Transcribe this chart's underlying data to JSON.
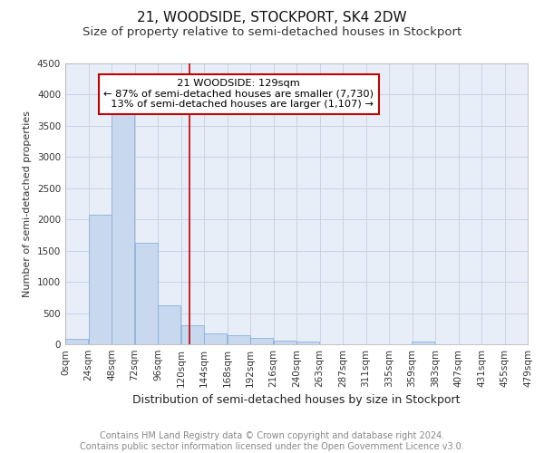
{
  "title": "21, WOODSIDE, STOCKPORT, SK4 2DW",
  "subtitle": "Size of property relative to semi-detached houses in Stockport",
  "xlabel": "Distribution of semi-detached houses by size in Stockport",
  "ylabel": "Number of semi-detached properties",
  "footnote": "Contains HM Land Registry data © Crown copyright and database right 2024.\nContains public sector information licensed under the Open Government Licence v3.0.",
  "bar_color": "#c8d9ef",
  "bar_edge_color": "#8ab0d8",
  "property_line_value": 129,
  "pct_smaller": 87,
  "count_smaller": 7730,
  "pct_larger": 13,
  "count_larger": 1107,
  "annotation_box_color": "#c00000",
  "ylim": [
    0,
    4500
  ],
  "bin_width": 24,
  "bin_starts": [
    0,
    24,
    48,
    72,
    96,
    120,
    144,
    168,
    192,
    216,
    240,
    263,
    287,
    311,
    335,
    359,
    383,
    407,
    431,
    455
  ],
  "bar_heights": [
    90,
    2075,
    3750,
    1625,
    625,
    300,
    175,
    140,
    100,
    65,
    45,
    0,
    0,
    0,
    0,
    50,
    0,
    0,
    0,
    0
  ],
  "xtick_labels": [
    "0sqm",
    "24sqm",
    "48sqm",
    "72sqm",
    "96sqm",
    "120sqm",
    "144sqm",
    "168sqm",
    "192sqm",
    "216sqm",
    "240sqm",
    "263sqm",
    "287sqm",
    "311sqm",
    "335sqm",
    "359sqm",
    "383sqm",
    "407sqm",
    "431sqm",
    "455sqm",
    "479sqm"
  ],
  "grid_color": "#c8d4e8",
  "background_color": "#e8eef8",
  "title_fontsize": 11,
  "subtitle_fontsize": 9.5,
  "xlabel_fontsize": 9,
  "ylabel_fontsize": 8,
  "tick_fontsize": 7.5,
  "footnote_fontsize": 7
}
